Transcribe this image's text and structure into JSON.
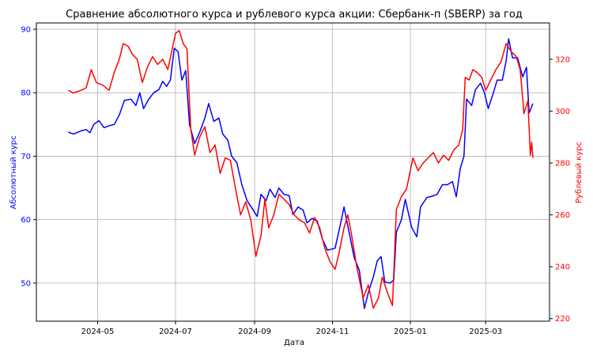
{
  "chart_data": {
    "type": "line",
    "title": "Сравнение абсолютного курса и рублевого курса акции: Сбербанк-п (SBERP) за год",
    "xlabel": "Дата",
    "ylabel_left": "Абсолютный курс",
    "ylabel_right": "Рублевый курс",
    "x_range": [
      "2024-03-14",
      "2025-04-20"
    ],
    "x_ticks": [
      "2024-05-01",
      "2024-07-01",
      "2024-09-01",
      "2024-11-01",
      "2025-01-01",
      "2025-03-01"
    ],
    "x_tick_labels": [
      "2024-05",
      "2024-07",
      "2024-09",
      "2024-11",
      "2025-01",
      "2025-03"
    ],
    "ylim_left": [
      44,
      91
    ],
    "ylim_right": [
      219,
      334
    ],
    "y_ticks_left": [
      50,
      60,
      70,
      80,
      90
    ],
    "y_ticks_right": [
      220,
      240,
      260,
      280,
      300,
      320
    ],
    "grid": true,
    "colors": {
      "left_series": "#0000ff",
      "right_series": "#ff0000",
      "grid": "#b0b0b0",
      "axes": "#000000"
    },
    "series": [
      {
        "axis": "left",
        "points": [
          [
            "2024-04-08",
            73.8
          ],
          [
            "2024-04-12",
            73.5
          ],
          [
            "2024-04-18",
            74.0
          ],
          [
            "2024-04-22",
            74.2
          ],
          [
            "2024-04-25",
            73.7
          ],
          [
            "2024-04-28",
            75.0
          ],
          [
            "2024-05-02",
            75.6
          ],
          [
            "2024-05-06",
            74.5
          ],
          [
            "2024-05-10",
            74.8
          ],
          [
            "2024-05-14",
            75.0
          ],
          [
            "2024-05-18",
            76.5
          ],
          [
            "2024-05-22",
            78.8
          ],
          [
            "2024-05-27",
            79.0
          ],
          [
            "2024-05-31",
            78.0
          ],
          [
            "2024-06-03",
            80.0
          ],
          [
            "2024-06-06",
            77.5
          ],
          [
            "2024-06-10",
            79.0
          ],
          [
            "2024-06-14",
            80.0
          ],
          [
            "2024-06-18",
            80.5
          ],
          [
            "2024-06-21",
            81.8
          ],
          [
            "2024-06-24",
            81.0
          ],
          [
            "2024-06-27",
            82.0
          ],
          [
            "2024-06-30",
            87.0
          ],
          [
            "2024-07-03",
            86.5
          ],
          [
            "2024-07-06",
            82.0
          ],
          [
            "2024-07-09",
            83.5
          ],
          [
            "2024-07-12",
            75.0
          ],
          [
            "2024-07-16",
            72.0
          ],
          [
            "2024-07-20",
            73.8
          ],
          [
            "2024-07-24",
            76.0
          ],
          [
            "2024-07-27",
            78.3
          ],
          [
            "2024-07-31",
            75.5
          ],
          [
            "2024-08-04",
            76.0
          ],
          [
            "2024-08-07",
            73.5
          ],
          [
            "2024-08-11",
            72.5
          ],
          [
            "2024-08-14",
            70.0
          ],
          [
            "2024-08-18",
            69.0
          ],
          [
            "2024-08-22",
            65.5
          ],
          [
            "2024-08-26",
            63.0
          ],
          [
            "2024-08-30",
            61.8
          ],
          [
            "2024-09-03",
            60.5
          ],
          [
            "2024-09-06",
            64.0
          ],
          [
            "2024-09-10",
            63.0
          ],
          [
            "2024-09-13",
            64.8
          ],
          [
            "2024-09-17",
            63.5
          ],
          [
            "2024-09-20",
            65.0
          ],
          [
            "2024-09-24",
            64.0
          ],
          [
            "2024-09-28",
            63.8
          ],
          [
            "2024-10-01",
            60.8
          ],
          [
            "2024-10-05",
            62.0
          ],
          [
            "2024-10-09",
            61.5
          ],
          [
            "2024-10-12",
            59.5
          ],
          [
            "2024-10-16",
            60.2
          ],
          [
            "2024-10-20",
            59.8
          ],
          [
            "2024-10-24",
            57.0
          ],
          [
            "2024-10-28",
            55.2
          ],
          [
            "2024-11-03",
            55.5
          ],
          [
            "2024-11-08",
            60.0
          ],
          [
            "2024-11-10",
            62.0
          ],
          [
            "2024-11-14",
            58.0
          ],
          [
            "2024-11-18",
            54.0
          ],
          [
            "2024-11-22",
            52.0
          ],
          [
            "2024-11-26",
            46.0
          ],
          [
            "2024-11-29",
            48.5
          ],
          [
            "2024-12-03",
            51.0
          ],
          [
            "2024-12-06",
            53.5
          ],
          [
            "2024-12-09",
            54.2
          ],
          [
            "2024-12-12",
            50.2
          ],
          [
            "2024-12-16",
            50.0
          ],
          [
            "2024-12-19",
            50.5
          ],
          [
            "2024-12-21",
            58.0
          ],
          [
            "2024-12-25",
            60.0
          ],
          [
            "2024-12-28",
            63.2
          ],
          [
            "2025-01-02",
            58.8
          ],
          [
            "2025-01-06",
            57.3
          ],
          [
            "2025-01-09",
            62.0
          ],
          [
            "2025-01-14",
            63.5
          ],
          [
            "2025-01-18",
            63.7
          ],
          [
            "2025-01-22",
            64.0
          ],
          [
            "2025-01-26",
            65.5
          ],
          [
            "2025-01-30",
            65.5
          ],
          [
            "2025-02-03",
            66.0
          ],
          [
            "2025-02-06",
            63.6
          ],
          [
            "2025-02-09",
            68.0
          ],
          [
            "2025-02-12",
            70.0
          ],
          [
            "2025-02-14",
            79.0
          ],
          [
            "2025-02-18",
            78.0
          ],
          [
            "2025-02-21",
            80.5
          ],
          [
            "2025-02-25",
            81.5
          ],
          [
            "2025-02-28",
            80.0
          ],
          [
            "2025-03-03",
            77.5
          ],
          [
            "2025-03-07",
            80.0
          ],
          [
            "2025-03-10",
            82.0
          ],
          [
            "2025-03-14",
            82.0
          ],
          [
            "2025-03-17",
            85.0
          ],
          [
            "2025-03-19",
            88.5
          ],
          [
            "2025-03-22",
            85.5
          ],
          [
            "2025-03-26",
            85.5
          ],
          [
            "2025-03-30",
            82.5
          ],
          [
            "2025-04-02",
            84.0
          ],
          [
            "2025-04-04",
            76.8
          ],
          [
            "2025-04-07",
            78.3
          ]
        ]
      },
      {
        "axis": "right",
        "points": [
          [
            "2024-04-08",
            308
          ],
          [
            "2024-04-12",
            307
          ],
          [
            "2024-04-18",
            308
          ],
          [
            "2024-04-22",
            309
          ],
          [
            "2024-04-26",
            316
          ],
          [
            "2024-04-30",
            311
          ],
          [
            "2024-05-05",
            310
          ],
          [
            "2024-05-10",
            308
          ],
          [
            "2024-05-14",
            315
          ],
          [
            "2024-05-18",
            320
          ],
          [
            "2024-05-21",
            326
          ],
          [
            "2024-05-25",
            325
          ],
          [
            "2024-05-28",
            322
          ],
          [
            "2024-06-01",
            320
          ],
          [
            "2024-06-05",
            311
          ],
          [
            "2024-06-09",
            317
          ],
          [
            "2024-06-13",
            321
          ],
          [
            "2024-06-17",
            318
          ],
          [
            "2024-06-21",
            320
          ],
          [
            "2024-06-25",
            316
          ],
          [
            "2024-06-28",
            323
          ],
          [
            "2024-07-01",
            330
          ],
          [
            "2024-07-04",
            331
          ],
          [
            "2024-07-07",
            326
          ],
          [
            "2024-07-10",
            324
          ],
          [
            "2024-07-13",
            293
          ],
          [
            "2024-07-16",
            283
          ],
          [
            "2024-07-20",
            290
          ],
          [
            "2024-07-24",
            294
          ],
          [
            "2024-07-28",
            284
          ],
          [
            "2024-08-01",
            287
          ],
          [
            "2024-08-05",
            276
          ],
          [
            "2024-08-09",
            282
          ],
          [
            "2024-08-13",
            281
          ],
          [
            "2024-08-17",
            270
          ],
          [
            "2024-08-21",
            260
          ],
          [
            "2024-08-25",
            265
          ],
          [
            "2024-08-29",
            258
          ],
          [
            "2024-09-02",
            244
          ],
          [
            "2024-09-06",
            252
          ],
          [
            "2024-09-09",
            266
          ],
          [
            "2024-09-12",
            255
          ],
          [
            "2024-09-16",
            260
          ],
          [
            "2024-09-20",
            268
          ],
          [
            "2024-09-24",
            266
          ],
          [
            "2024-09-28",
            264
          ],
          [
            "2024-10-02",
            260
          ],
          [
            "2024-10-06",
            258
          ],
          [
            "2024-10-10",
            257
          ],
          [
            "2024-10-14",
            253
          ],
          [
            "2024-10-18",
            259
          ],
          [
            "2024-10-22",
            255
          ],
          [
            "2024-10-26",
            247
          ],
          [
            "2024-10-30",
            242
          ],
          [
            "2024-11-03",
            239
          ],
          [
            "2024-11-06",
            245
          ],
          [
            "2024-11-10",
            255
          ],
          [
            "2024-11-13",
            260
          ],
          [
            "2024-11-16",
            252
          ],
          [
            "2024-11-20",
            240
          ],
          [
            "2024-11-25",
            228
          ],
          [
            "2024-11-29",
            233
          ],
          [
            "2024-12-03",
            224
          ],
          [
            "2024-12-07",
            228
          ],
          [
            "2024-12-10",
            236
          ],
          [
            "2024-12-14",
            230
          ],
          [
            "2024-12-18",
            225
          ],
          [
            "2024-12-21",
            262
          ],
          [
            "2024-12-25",
            267
          ],
          [
            "2024-12-29",
            270
          ],
          [
            "2025-01-03",
            282
          ],
          [
            "2025-01-07",
            277
          ],
          [
            "2025-01-11",
            280
          ],
          [
            "2025-01-15",
            282
          ],
          [
            "2025-01-19",
            284
          ],
          [
            "2025-01-23",
            280
          ],
          [
            "2025-01-27",
            283
          ],
          [
            "2025-01-31",
            281
          ],
          [
            "2025-02-04",
            285
          ],
          [
            "2025-02-08",
            287
          ],
          [
            "2025-02-11",
            293
          ],
          [
            "2025-02-13",
            313
          ],
          [
            "2025-02-16",
            312
          ],
          [
            "2025-02-19",
            316
          ],
          [
            "2025-02-22",
            315
          ],
          [
            "2025-02-26",
            313
          ],
          [
            "2025-03-01",
            308
          ],
          [
            "2025-03-05",
            312
          ],
          [
            "2025-03-09",
            316
          ],
          [
            "2025-03-13",
            319
          ],
          [
            "2025-03-17",
            326
          ],
          [
            "2025-03-21",
            323
          ],
          [
            "2025-03-25",
            321
          ],
          [
            "2025-03-28",
            316
          ],
          [
            "2025-03-31",
            299
          ],
          [
            "2025-04-03",
            304
          ],
          [
            "2025-04-05",
            283
          ],
          [
            "2025-04-06",
            288
          ],
          [
            "2025-04-07",
            282
          ]
        ]
      }
    ]
  }
}
